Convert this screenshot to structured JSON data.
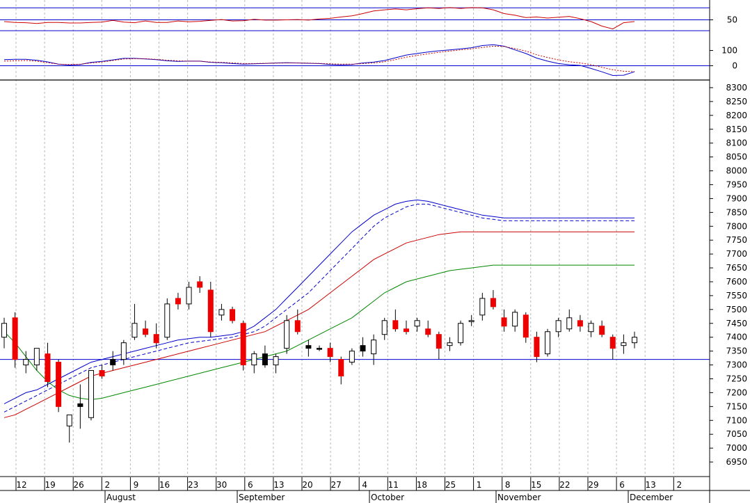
{
  "chart_data": [
    {
      "type": "line",
      "indicator": "oscillator-1",
      "y_ticks": [
        50
      ],
      "ylim": [
        0,
        100
      ],
      "ref_lines": [
        92,
        50,
        12
      ],
      "series": [
        {
          "color": "#cc0000",
          "values": [
            44,
            41,
            40,
            37,
            41,
            41,
            39,
            39,
            41,
            42,
            48,
            42,
            40,
            46,
            41,
            41,
            46,
            43,
            45,
            48,
            51,
            46,
            47,
            52,
            49,
            49,
            50,
            51,
            49,
            53,
            55,
            60,
            64,
            72,
            81,
            85,
            88,
            85,
            89,
            92,
            90,
            93,
            90,
            93,
            92,
            85,
            72,
            66,
            58,
            60,
            56,
            59,
            62,
            54,
            44,
            28,
            18,
            40,
            44
          ]
        }
      ]
    },
    {
      "type": "line",
      "indicator": "oscillator-2",
      "y_ticks": [
        100,
        0
      ],
      "ylim": [
        -80,
        180
      ],
      "ref_lines": [
        0
      ],
      "series": [
        {
          "color": "#0000cc",
          "values": [
            40,
            42,
            42,
            36,
            25,
            10,
            5,
            8,
            22,
            28,
            38,
            48,
            48,
            44,
            40,
            32,
            28,
            30,
            30,
            22,
            20,
            14,
            10,
            12,
            15,
            18,
            20,
            18,
            16,
            14,
            8,
            6,
            8,
            18,
            24,
            34,
            52,
            70,
            80,
            90,
            98,
            104,
            110,
            118,
            132,
            138,
            128,
            104,
            80,
            50,
            30,
            14,
            6,
            2,
            -18,
            -40,
            -64,
            -62,
            -40
          ]
        },
        {
          "color": "#cc0000",
          "dashed": true,
          "values": [
            30,
            32,
            34,
            30,
            20,
            10,
            8,
            10,
            18,
            24,
            34,
            44,
            46,
            46,
            42,
            36,
            32,
            30,
            30,
            24,
            22,
            18,
            14,
            14,
            16,
            17,
            18,
            18,
            17,
            15,
            12,
            10,
            10,
            14,
            18,
            26,
            40,
            56,
            68,
            78,
            88,
            96,
            104,
            110,
            120,
            128,
            126,
            112,
            96,
            72,
            54,
            38,
            26,
            18,
            6,
            -10,
            -26,
            -36,
            -38
          ]
        }
      ]
    },
    {
      "type": "candlestick",
      "ylim": [
        6900,
        8320
      ],
      "y_ticks": [
        8300,
        8250,
        8200,
        8150,
        8100,
        8050,
        8000,
        7950,
        7900,
        7850,
        7800,
        7750,
        7700,
        7650,
        7600,
        7550,
        7500,
        7450,
        7400,
        7350,
        7300,
        7250,
        7200,
        7150,
        7100,
        7050,
        7000,
        6950
      ],
      "x_day_labels": [
        "12",
        "19",
        "26",
        "2",
        "9",
        "16",
        "23",
        "30",
        "6",
        "13",
        "20",
        "27",
        "4",
        "11",
        "18",
        "25",
        "1",
        "8",
        "15",
        "22",
        "29",
        "6",
        "13",
        "2"
      ],
      "x_month_labels": [
        "August",
        "September",
        "October",
        "November",
        "December"
      ],
      "support_line": 7320,
      "candles": [
        {
          "o": 7400,
          "h": 7470,
          "l": 7360,
          "c": 7450,
          "col": "white"
        },
        {
          "o": 7470,
          "h": 7490,
          "l": 7290,
          "c": 7320,
          "col": "red"
        },
        {
          "o": 7300,
          "h": 7350,
          "l": 7270,
          "c": 7320,
          "col": "white"
        },
        {
          "o": 7300,
          "h": 7360,
          "l": 7280,
          "c": 7360,
          "col": "white"
        },
        {
          "o": 7340,
          "h": 7380,
          "l": 7220,
          "c": 7240,
          "col": "red"
        },
        {
          "o": 7310,
          "h": 7320,
          "l": 7130,
          "c": 7150,
          "col": "red"
        },
        {
          "o": 7080,
          "h": 7120,
          "l": 7020,
          "c": 7120,
          "col": "white"
        },
        {
          "o": 7160,
          "h": 7230,
          "l": 7070,
          "c": 7150,
          "col": "black"
        },
        {
          "o": 7110,
          "h": 7280,
          "l": 7100,
          "c": 7280,
          "col": "white"
        },
        {
          "o": 7280,
          "h": 7300,
          "l": 7250,
          "c": 7260,
          "col": "red"
        },
        {
          "o": 7300,
          "h": 7350,
          "l": 7280,
          "c": 7320,
          "col": "black"
        },
        {
          "o": 7320,
          "h": 7390,
          "l": 7300,
          "c": 7380,
          "col": "white"
        },
        {
          "o": 7400,
          "h": 7520,
          "l": 7390,
          "c": 7450,
          "col": "white"
        },
        {
          "o": 7430,
          "h": 7460,
          "l": 7400,
          "c": 7410,
          "col": "red"
        },
        {
          "o": 7410,
          "h": 7450,
          "l": 7360,
          "c": 7380,
          "col": "red"
        },
        {
          "o": 7400,
          "h": 7540,
          "l": 7390,
          "c": 7520,
          "col": "white"
        },
        {
          "o": 7540,
          "h": 7560,
          "l": 7500,
          "c": 7520,
          "col": "red"
        },
        {
          "o": 7520,
          "h": 7600,
          "l": 7500,
          "c": 7580,
          "col": "white"
        },
        {
          "o": 7600,
          "h": 7620,
          "l": 7560,
          "c": 7580,
          "col": "red"
        },
        {
          "o": 7570,
          "h": 7600,
          "l": 7400,
          "c": 7420,
          "col": "red"
        },
        {
          "o": 7480,
          "h": 7520,
          "l": 7460,
          "c": 7500,
          "col": "white"
        },
        {
          "o": 7500,
          "h": 7510,
          "l": 7450,
          "c": 7460,
          "col": "red"
        },
        {
          "o": 7450,
          "h": 7460,
          "l": 7280,
          "c": 7300,
          "col": "red"
        },
        {
          "o": 7300,
          "h": 7350,
          "l": 7270,
          "c": 7340,
          "col": "white"
        },
        {
          "o": 7340,
          "h": 7370,
          "l": 7290,
          "c": 7300,
          "col": "black"
        },
        {
          "o": 7300,
          "h": 7340,
          "l": 7270,
          "c": 7330,
          "col": "white"
        },
        {
          "o": 7360,
          "h": 7480,
          "l": 7340,
          "c": 7460,
          "col": "white"
        },
        {
          "o": 7460,
          "h": 7500,
          "l": 7410,
          "c": 7420,
          "col": "red"
        },
        {
          "o": 7370,
          "h": 7390,
          "l": 7330,
          "c": 7360,
          "col": "black"
        },
        {
          "o": 7360,
          "h": 7370,
          "l": 7350,
          "c": 7360,
          "col": "black"
        },
        {
          "o": 7360,
          "h": 7380,
          "l": 7310,
          "c": 7330,
          "col": "red"
        },
        {
          "o": 7320,
          "h": 7330,
          "l": 7230,
          "c": 7260,
          "col": "red"
        },
        {
          "o": 7310,
          "h": 7360,
          "l": 7300,
          "c": 7350,
          "col": "white"
        },
        {
          "o": 7370,
          "h": 7400,
          "l": 7330,
          "c": 7350,
          "col": "black"
        },
        {
          "o": 7340,
          "h": 7410,
          "l": 7300,
          "c": 7390,
          "col": "white"
        },
        {
          "o": 7410,
          "h": 7470,
          "l": 7390,
          "c": 7460,
          "col": "white"
        },
        {
          "o": 7460,
          "h": 7500,
          "l": 7420,
          "c": 7430,
          "col": "red"
        },
        {
          "o": 7430,
          "h": 7460,
          "l": 7410,
          "c": 7420,
          "col": "red"
        },
        {
          "o": 7440,
          "h": 7470,
          "l": 7420,
          "c": 7460,
          "col": "white"
        },
        {
          "o": 7430,
          "h": 7460,
          "l": 7400,
          "c": 7410,
          "col": "red"
        },
        {
          "o": 7410,
          "h": 7420,
          "l": 7320,
          "c": 7360,
          "col": "red"
        },
        {
          "o": 7370,
          "h": 7400,
          "l": 7350,
          "c": 7380,
          "col": "white"
        },
        {
          "o": 7380,
          "h": 7460,
          "l": 7370,
          "c": 7450,
          "col": "white"
        },
        {
          "o": 7460,
          "h": 7480,
          "l": 7440,
          "c": 7460,
          "col": "white"
        },
        {
          "o": 7480,
          "h": 7560,
          "l": 7460,
          "c": 7540,
          "col": "white"
        },
        {
          "o": 7540,
          "h": 7570,
          "l": 7500,
          "c": 7510,
          "col": "red"
        },
        {
          "o": 7470,
          "h": 7500,
          "l": 7420,
          "c": 7440,
          "col": "red"
        },
        {
          "o": 7440,
          "h": 7500,
          "l": 7420,
          "c": 7490,
          "col": "white"
        },
        {
          "o": 7480,
          "h": 7490,
          "l": 7380,
          "c": 7400,
          "col": "red"
        },
        {
          "o": 7400,
          "h": 7420,
          "l": 7310,
          "c": 7330,
          "col": "red"
        },
        {
          "o": 7340,
          "h": 7430,
          "l": 7330,
          "c": 7420,
          "col": "white"
        },
        {
          "o": 7420,
          "h": 7470,
          "l": 7400,
          "c": 7460,
          "col": "white"
        },
        {
          "o": 7430,
          "h": 7500,
          "l": 7420,
          "c": 7470,
          "col": "white"
        },
        {
          "o": 7460,
          "h": 7480,
          "l": 7420,
          "c": 7440,
          "col": "red"
        },
        {
          "o": 7420,
          "h": 7460,
          "l": 7400,
          "c": 7450,
          "col": "white"
        },
        {
          "o": 7440,
          "h": 7460,
          "l": 7400,
          "c": 7410,
          "col": "red"
        },
        {
          "o": 7400,
          "h": 7410,
          "l": 7320,
          "c": 7360,
          "col": "red"
        },
        {
          "o": 7370,
          "h": 7410,
          "l": 7340,
          "c": 7380,
          "col": "white"
        },
        {
          "o": 7380,
          "h": 7420,
          "l": 7360,
          "c": 7400,
          "col": "white"
        }
      ],
      "moving_averages": [
        {
          "color": "#0000cc",
          "values": [
            7160,
            7180,
            7200,
            7210,
            7230,
            7250,
            7270,
            7290,
            7310,
            7320,
            7330,
            7340,
            7350,
            7360,
            7370,
            7380,
            7390,
            7395,
            7400,
            7400,
            7405,
            7410,
            7420,
            7440,
            7470,
            7500,
            7540,
            7580,
            7620,
            7660,
            7700,
            7740,
            7780,
            7810,
            7840,
            7860,
            7880,
            7890,
            7895,
            7890,
            7880,
            7870,
            7860,
            7850,
            7840,
            7835,
            7830,
            7830,
            7830,
            7830,
            7830,
            7830,
            7830,
            7830,
            7830,
            7830,
            7830,
            7830,
            7830
          ]
        },
        {
          "color": "#0000cc",
          "dashed": true,
          "values": [
            7130,
            7150,
            7170,
            7190,
            7210,
            7230,
            7250,
            7270,
            7290,
            7300,
            7310,
            7320,
            7330,
            7340,
            7350,
            7360,
            7370,
            7380,
            7385,
            7390,
            7395,
            7400,
            7410,
            7420,
            7440,
            7470,
            7500,
            7530,
            7560,
            7600,
            7640,
            7680,
            7720,
            7760,
            7800,
            7830,
            7850,
            7870,
            7880,
            7880,
            7870,
            7860,
            7850,
            7840,
            7830,
            7825,
            7820,
            7820,
            7820,
            7820,
            7820,
            7820,
            7820,
            7820,
            7820,
            7820,
            7820,
            7820,
            7820
          ]
        },
        {
          "color": "#cc0000",
          "values": [
            7110,
            7120,
            7140,
            7160,
            7180,
            7200,
            7220,
            7240,
            7260,
            7270,
            7280,
            7290,
            7300,
            7310,
            7320,
            7330,
            7340,
            7350,
            7360,
            7370,
            7380,
            7390,
            7400,
            7410,
            7420,
            7440,
            7460,
            7480,
            7500,
            7530,
            7560,
            7590,
            7620,
            7650,
            7680,
            7700,
            7720,
            7740,
            7750,
            7760,
            7770,
            7775,
            7780,
            7780,
            7780,
            7780,
            7780,
            7780,
            7780,
            7780,
            7780,
            7780,
            7780,
            7780,
            7780,
            7780,
            7780,
            7780,
            7780
          ]
        },
        {
          "color": "#008800",
          "values": [
            7420,
            7380,
            7330,
            7280,
            7240,
            7210,
            7190,
            7180,
            7175,
            7180,
            7190,
            7200,
            7210,
            7220,
            7230,
            7240,
            7250,
            7260,
            7270,
            7280,
            7290,
            7300,
            7310,
            7320,
            7330,
            7340,
            7350,
            7370,
            7390,
            7410,
            7430,
            7450,
            7470,
            7500,
            7530,
            7560,
            7580,
            7600,
            7610,
            7620,
            7630,
            7640,
            7645,
            7650,
            7655,
            7660,
            7660,
            7660,
            7660,
            7660,
            7660,
            7660,
            7660,
            7660,
            7660,
            7660,
            7660,
            7660,
            7660
          ]
        }
      ]
    }
  ]
}
